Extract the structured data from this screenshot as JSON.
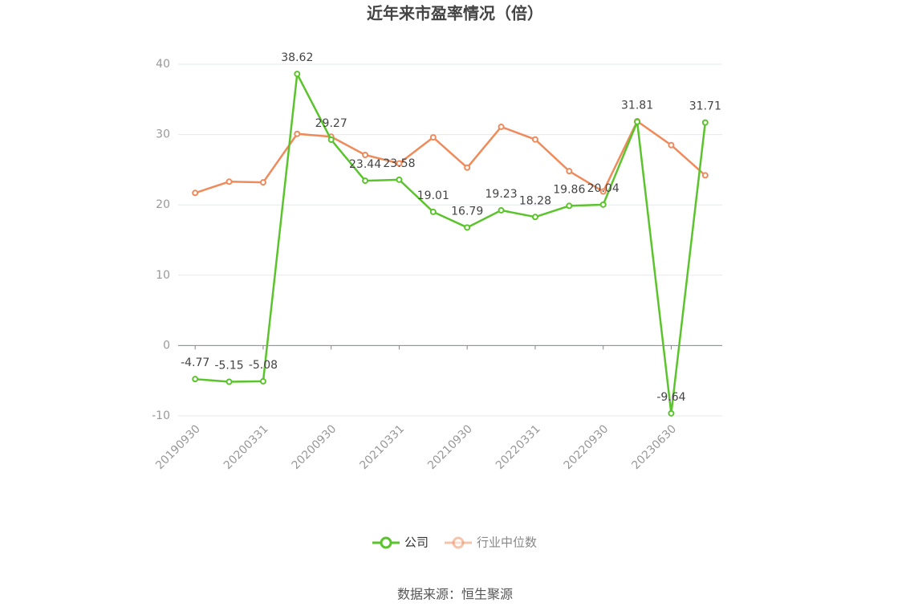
{
  "chart_data": {
    "type": "line",
    "title": "近年来市盈率情况（倍）",
    "categories": [
      "20190930",
      null,
      "20200331",
      null,
      "20200930",
      null,
      "20210331",
      null,
      "20210930",
      null,
      "20220331",
      null,
      "20220930",
      null,
      "20230630",
      null
    ],
    "series": [
      {
        "name": "公司",
        "color": "#5bc42c",
        "values": [
          -4.77,
          -5.15,
          -5.08,
          38.62,
          29.27,
          23.44,
          23.58,
          19.01,
          16.79,
          19.23,
          18.28,
          19.86,
          20.04,
          31.81,
          -9.64,
          31.71
        ]
      },
      {
        "name": "行业中位数",
        "color": "#ef8a5a",
        "values": [
          21.7,
          23.3,
          23.2,
          30.1,
          29.7,
          27.1,
          25.9,
          29.6,
          25.3,
          31.1,
          29.3,
          24.8,
          21.9,
          31.9,
          28.5,
          24.2
        ]
      }
    ],
    "ylim": [
      -10,
      40
    ],
    "yticks": [
      -10,
      0,
      10,
      20,
      30,
      40
    ],
    "grid": true,
    "legend": "bottom",
    "source": "数据来源：恒生聚源"
  }
}
